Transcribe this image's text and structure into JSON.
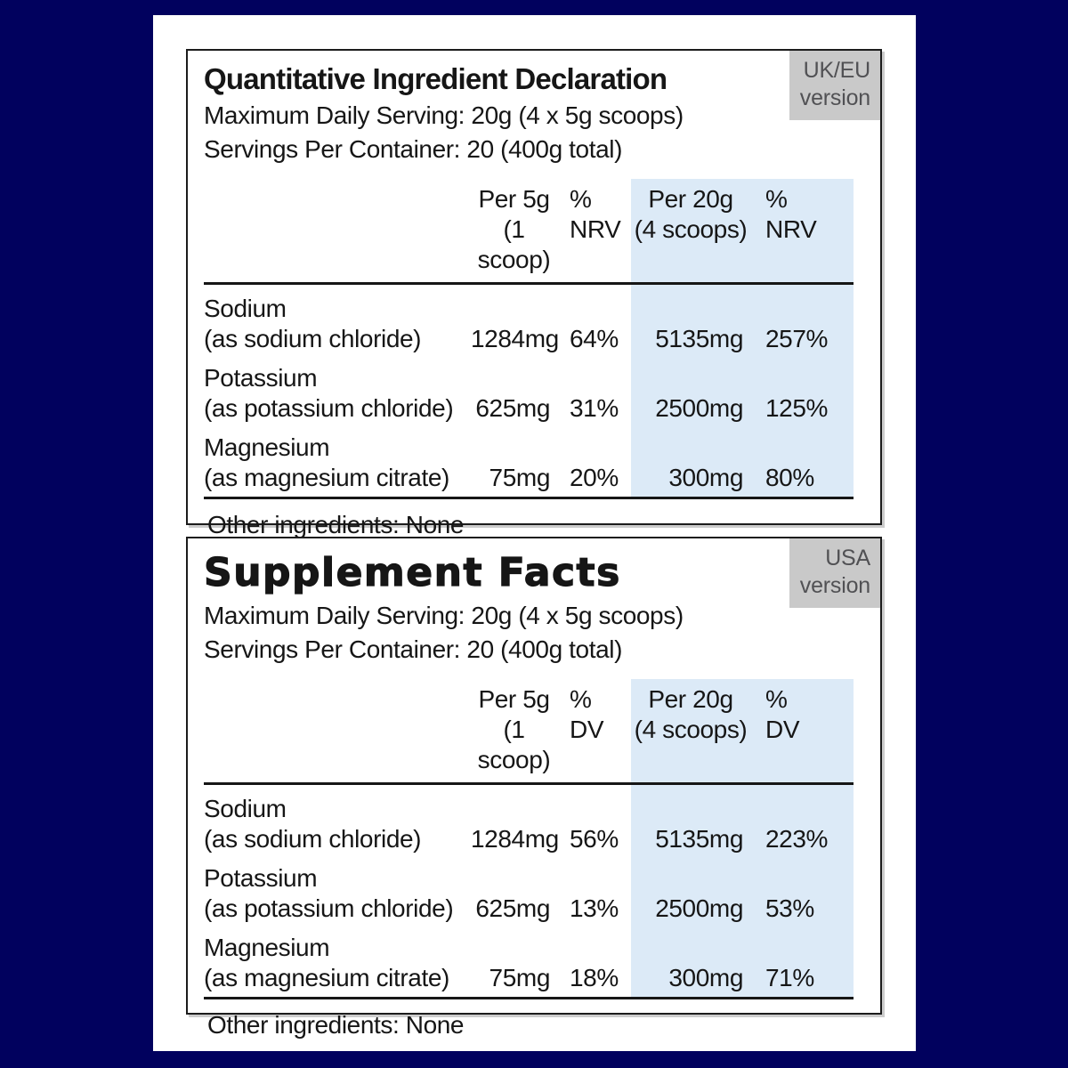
{
  "colors": {
    "background_navy": "#01015e",
    "card_white": "#ffffff",
    "panel_border": "#1c1c1c",
    "badge_background": "#c9c9c9",
    "badge_text": "#515154",
    "highlight_blue": "#dceaf7",
    "text": "#161616"
  },
  "panels": [
    {
      "title": "Quantitative Ingredient Declaration",
      "badge_line1": "UK/EU",
      "badge_line2": "version",
      "serving_line1": "Maximum Daily Serving: 20g (4 x 5g scoops)",
      "serving_line2": "Servings Per Container: 20 (400g total)",
      "columns": {
        "amt1": [
          "Per 5g",
          "(1 scoop)"
        ],
        "pct1": [
          "%",
          "NRV"
        ],
        "amt2": [
          "Per 20g",
          "(4 scoops)"
        ],
        "pct2": [
          "%",
          "NRV"
        ]
      },
      "rows": [
        {
          "name": "Sodium",
          "source": "(as sodium chloride)",
          "amt1": "1284mg",
          "pct1": "64%",
          "amt2": "5135mg",
          "pct2": "257%"
        },
        {
          "name": "Potassium",
          "source": "(as potassium chloride)",
          "amt1": "625mg",
          "pct1": "31%",
          "amt2": "2500mg",
          "pct2": "125%"
        },
        {
          "name": "Magnesium",
          "source": "(as magnesium citrate)",
          "amt1": "75mg",
          "pct1": "20%",
          "amt2": "300mg",
          "pct2": "80%"
        }
      ],
      "other": "Other ingredients: None"
    },
    {
      "title": "Supplement Facts",
      "badge_line1": "USA",
      "badge_line2": "version",
      "serving_line1": "Maximum Daily Serving: 20g (4 x 5g scoops)",
      "serving_line2": "Servings Per Container: 20 (400g total)",
      "columns": {
        "amt1": [
          "Per 5g",
          "(1 scoop)"
        ],
        "pct1": [
          "%",
          "DV"
        ],
        "amt2": [
          "Per 20g",
          "(4 scoops)"
        ],
        "pct2": [
          "%",
          "DV"
        ]
      },
      "rows": [
        {
          "name": "Sodium",
          "source": "(as sodium chloride)",
          "amt1": "1284mg",
          "pct1": "56%",
          "amt2": "5135mg",
          "pct2": "223%"
        },
        {
          "name": "Potassium",
          "source": "(as potassium chloride)",
          "amt1": "625mg",
          "pct1": "13%",
          "amt2": "2500mg",
          "pct2": "53%"
        },
        {
          "name": "Magnesium",
          "source": "(as magnesium citrate)",
          "amt1": "75mg",
          "pct1": "18%",
          "amt2": "300mg",
          "pct2": "71%"
        }
      ],
      "other": "Other ingredients: None"
    }
  ]
}
